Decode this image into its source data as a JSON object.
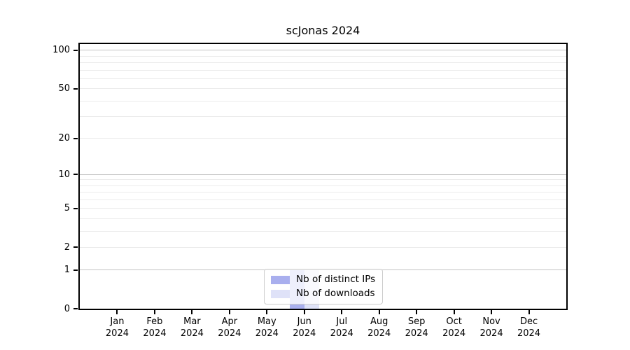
{
  "chart_data": {
    "type": "bar",
    "title": "scJonas 2024",
    "categories": [
      "Jan 2024",
      "Feb 2024",
      "Mar 2024",
      "Apr 2024",
      "May 2024",
      "Jun 2024",
      "Jul 2024",
      "Aug 2024",
      "Sep 2024",
      "Oct 2024",
      "Nov 2024",
      "Dec 2024"
    ],
    "series": [
      {
        "name": "Nb of distinct IPs",
        "color": "#a9afee",
        "values": [
          0,
          0,
          0,
          0,
          0,
          1,
          0,
          0,
          0,
          0,
          0,
          0
        ]
      },
      {
        "name": "Nb of downloads",
        "color": "#dfe2f8",
        "values": [
          0,
          0,
          0,
          0,
          0,
          1,
          0,
          0,
          0,
          0,
          0,
          0
        ]
      }
    ],
    "xlabel": "",
    "ylabel": "",
    "yscale": "log10(1+y)",
    "ylim": [
      0,
      112
    ],
    "y_tick_values": [
      0,
      1,
      2,
      5,
      10,
      20,
      50,
      100
    ],
    "y_strong_gridlines": [
      1,
      10,
      100
    ],
    "y_soft_gridlines": [
      2,
      3,
      4,
      5,
      6,
      7,
      8,
      9,
      20,
      30,
      40,
      50,
      60,
      70,
      80,
      90
    ],
    "grid": true,
    "legend_position": "inside-bottom-center"
  },
  "colors": {
    "background": "#ffffff",
    "axis": "#000000",
    "grid_strong": "#c3c3c3",
    "grid_soft": "#ebebeb",
    "legend_border": "#cccccc",
    "legend_background": "rgba(255,255,255,0.8)",
    "text": "#000000"
  }
}
